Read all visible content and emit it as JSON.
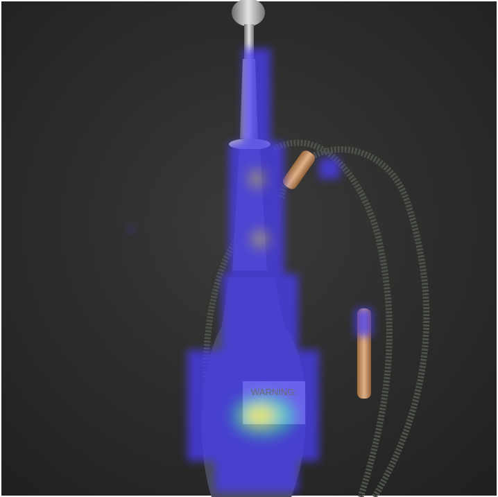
{
  "label": {
    "title": "WARNING:"
  }
}
